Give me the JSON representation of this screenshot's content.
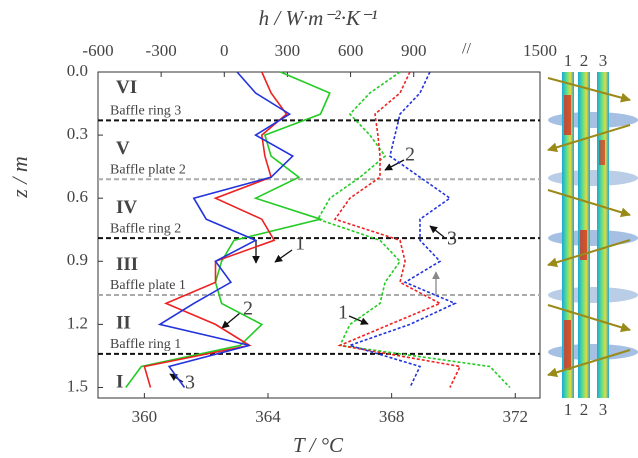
{
  "chart_data": {
    "type": "line",
    "x_label": "T / °C",
    "x2_label": "h / W·m⁻²·K⁻¹",
    "y_label": "z / m",
    "xlim": [
      358.5,
      372.8
    ],
    "xticks": [
      360,
      364,
      368,
      372
    ],
    "x2lim": [
      -600,
      1500
    ],
    "x2ticks": [
      -600,
      -300,
      0,
      300,
      600,
      900,
      1500
    ],
    "ylim": [
      0,
      1.55
    ],
    "y_inverted": true,
    "yticks": [
      {
        "value": 0,
        "label": "0.0"
      },
      0.3,
      0.6,
      0.9,
      1.2,
      1.5
    ],
    "z": [
      0,
      0.1,
      0.2,
      0.3,
      0.4,
      0.5,
      0.6,
      0.7,
      0.8,
      0.9,
      1.0,
      1.1,
      1.2,
      1.3,
      1.4,
      1.5
    ],
    "series": [
      {
        "color": "#22cc22",
        "axis": "x",
        "dashed": false,
        "values": [
          364.4,
          366.0,
          365.7,
          363.9,
          364.1,
          365.0,
          363.6,
          365.7,
          362.9,
          362.5,
          362.3,
          362.5,
          363.8,
          363.1,
          359.9,
          359.4
        ]
      },
      {
        "color": "#ee2222",
        "axis": "x",
        "dashed": false,
        "values": [
          363.8,
          364.1,
          364.6,
          363.8,
          363.9,
          364.1,
          362.3,
          363.8,
          364.2,
          362.3,
          362.3,
          360.7,
          362.3,
          363.4,
          360.0,
          360.2
        ]
      },
      {
        "color": "#2233dd",
        "axis": "x",
        "dashed": false,
        "values": [
          363.0,
          363.6,
          364.7,
          363.6,
          364.8,
          364.1,
          361.6,
          362.0,
          363.6,
          362.3,
          362.8,
          361.6,
          360.5,
          363.4,
          360.8,
          361.3
        ]
      },
      {
        "color": "#22cc22",
        "axis": "x2",
        "dashed": true,
        "values": [
          835,
          692,
          597,
          692,
          764,
          645,
          502,
          445,
          740,
          835,
          764,
          740,
          597,
          550,
          1262,
          1357
        ]
      },
      {
        "color": "#ee2222",
        "axis": "x2",
        "dashed": true,
        "values": [
          882,
          835,
          716,
          730,
          740,
          740,
          597,
          526,
          835,
          859,
          835,
          1025,
          787,
          550,
          1120,
          1072
        ]
      },
      {
        "color": "#2233dd",
        "axis": "x2",
        "dashed": true,
        "values": [
          977,
          930,
          835,
          811,
          787,
          930,
          1072,
          930,
          930,
          1025,
          859,
          1096,
          882,
          597,
          930,
          882
        ]
      }
    ],
    "baffles": [
      {
        "label": "Baffle ring 3",
        "z": 0.23,
        "color": "#111111"
      },
      {
        "label": "Baffle plate 2",
        "z": 0.51,
        "color": "#aaaaaa"
      },
      {
        "label": "Baffle ring 2",
        "z": 0.79,
        "color": "#111111"
      },
      {
        "label": "Baffle plate 1",
        "z": 1.06,
        "color": "#aaaaaa"
      },
      {
        "label": "Baffle ring 1",
        "z": 1.34,
        "color": "#111111"
      }
    ],
    "regions": [
      {
        "label": "VI",
        "z": 0.08
      },
      {
        "label": "V",
        "z": 0.37
      },
      {
        "label": "IV",
        "z": 0.65
      },
      {
        "label": "III",
        "z": 0.92
      },
      {
        "label": "II",
        "z": 1.2
      },
      {
        "label": "I",
        "z": 1.48
      }
    ],
    "annotations": [
      {
        "text": "1",
        "color": "#22cc22"
      },
      {
        "text": "2",
        "color": "#ee2222"
      },
      {
        "text": "3",
        "color": "#2233dd"
      },
      {
        "text": "2",
        "color": "#ee2222"
      },
      {
        "text": "3",
        "color": "#2233dd"
      },
      {
        "text": "1",
        "color": "#22cc22"
      }
    ],
    "pipe_labels": [
      {
        "text": "1",
        "color": "#22cc22"
      },
      {
        "text": "2",
        "color": "#ee2222"
      },
      {
        "text": "3",
        "color": "#2233dd"
      }
    ]
  }
}
